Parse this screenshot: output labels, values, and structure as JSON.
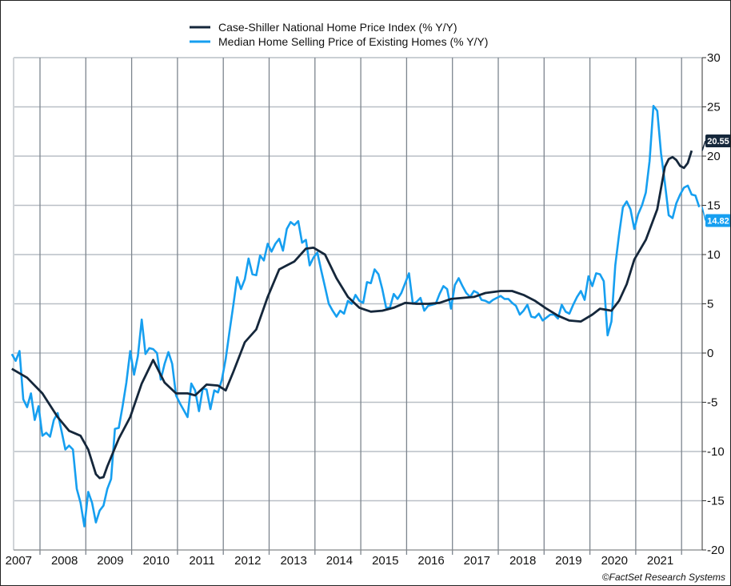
{
  "chart_data": {
    "type": "line",
    "title": "",
    "xlabel": "",
    "ylabel": "",
    "ylim": [
      -20,
      30
    ],
    "yticks": [
      30,
      25,
      20,
      15,
      10,
      5,
      0,
      -5,
      -10,
      -15,
      -20
    ],
    "xticks": [
      "2007",
      "2008",
      "2009",
      "2010",
      "2011",
      "2012",
      "2013",
      "2014",
      "2015",
      "2016",
      "2017",
      "2018",
      "2019",
      "2020",
      "2021"
    ],
    "grid": true,
    "legend_position": "top",
    "y_axis_side": "right",
    "series": [
      {
        "name": "Case-Shiller National Home Price Index (% Y/Y)",
        "color": "#15273b",
        "last_value_label": "20.55",
        "points": [
          [
            "2007-05",
            -1.6
          ],
          [
            "2007-09",
            -2.5
          ],
          [
            "2008-01",
            -4.1
          ],
          [
            "2008-05",
            -6.5
          ],
          [
            "2008-08",
            -7.9
          ],
          [
            "2008-11",
            -8.4
          ],
          [
            "2009-01",
            -9.8
          ],
          [
            "2009-03",
            -12.3
          ],
          [
            "2009-04",
            -12.7
          ],
          [
            "2009-05",
            -12.6
          ],
          [
            "2009-06",
            -11.5
          ],
          [
            "2009-09",
            -8.7
          ],
          [
            "2009-12",
            -6.5
          ],
          [
            "2010-03",
            -3.1
          ],
          [
            "2010-06",
            -0.7
          ],
          [
            "2010-09",
            -3.0
          ],
          [
            "2010-12",
            -4.1
          ],
          [
            "2011-03",
            -4.1
          ],
          [
            "2011-05",
            -4.3
          ],
          [
            "2011-08",
            -3.2
          ],
          [
            "2011-11",
            -3.3
          ],
          [
            "2012-01",
            -3.8
          ],
          [
            "2012-03",
            -1.9
          ],
          [
            "2012-06",
            1.1
          ],
          [
            "2012-09",
            2.4
          ],
          [
            "2012-12",
            5.7
          ],
          [
            "2013-03",
            8.5
          ],
          [
            "2013-05",
            8.9
          ],
          [
            "2013-07",
            9.3
          ],
          [
            "2013-10",
            10.6
          ],
          [
            "2013-12",
            10.7
          ],
          [
            "2014-03",
            10.0
          ],
          [
            "2014-06",
            7.6
          ],
          [
            "2014-09",
            5.7
          ],
          [
            "2014-12",
            4.6
          ],
          [
            "2015-03",
            4.2
          ],
          [
            "2015-06",
            4.3
          ],
          [
            "2015-09",
            4.6
          ],
          [
            "2015-12",
            5.1
          ],
          [
            "2016-03",
            5.0
          ],
          [
            "2016-06",
            5.0
          ],
          [
            "2016-09",
            5.1
          ],
          [
            "2016-12",
            5.5
          ],
          [
            "2017-06",
            5.7
          ],
          [
            "2017-09",
            6.1
          ],
          [
            "2018-01",
            6.3
          ],
          [
            "2018-04",
            6.3
          ],
          [
            "2018-07",
            5.9
          ],
          [
            "2018-10",
            5.3
          ],
          [
            "2019-01",
            4.5
          ],
          [
            "2019-04",
            3.8
          ],
          [
            "2019-07",
            3.3
          ],
          [
            "2019-10",
            3.2
          ],
          [
            "2020-01",
            3.9
          ],
          [
            "2020-03",
            4.5
          ],
          [
            "2020-06",
            4.3
          ],
          [
            "2020-08",
            5.3
          ],
          [
            "2020-10",
            7.0
          ],
          [
            "2020-12",
            9.5
          ],
          [
            "2021-03",
            11.5
          ],
          [
            "2021-06",
            14.6
          ],
          [
            "2021-08",
            18.9
          ],
          [
            "2021-09",
            19.7
          ],
          [
            "2021-10",
            19.9
          ],
          [
            "2021-11",
            19.6
          ],
          [
            "2021-12",
            19.0
          ],
          [
            "2022-01",
            18.8
          ],
          [
            "2022-02",
            19.3
          ],
          [
            "2022-03",
            20.55
          ]
        ]
      },
      {
        "name": "Median Home Selling Price of Existing Homes (% Y/Y)",
        "color": "#169ff0",
        "last_value_label": "14.82",
        "points": [
          [
            "2007-05",
            -0.1
          ],
          [
            "2007-06",
            -0.8
          ],
          [
            "2007-07",
            0.2
          ],
          [
            "2007-08",
            -4.7
          ],
          [
            "2007-09",
            -5.5
          ],
          [
            "2007-10",
            -4.1
          ],
          [
            "2007-11",
            -6.8
          ],
          [
            "2007-12",
            -5.4
          ],
          [
            "2008-01",
            -8.4
          ],
          [
            "2008-02",
            -8.1
          ],
          [
            "2008-03",
            -8.5
          ],
          [
            "2008-04",
            -6.8
          ],
          [
            "2008-05",
            -6.1
          ],
          [
            "2008-06",
            -7.9
          ],
          [
            "2008-07",
            -9.8
          ],
          [
            "2008-08",
            -9.4
          ],
          [
            "2008-09",
            -9.8
          ],
          [
            "2008-10",
            -13.8
          ],
          [
            "2008-11",
            -15.2
          ],
          [
            "2008-12",
            -17.6
          ],
          [
            "2009-01",
            -14.1
          ],
          [
            "2009-02",
            -15.2
          ],
          [
            "2009-03",
            -17.2
          ],
          [
            "2009-04",
            -16.0
          ],
          [
            "2009-05",
            -15.5
          ],
          [
            "2009-06",
            -13.8
          ],
          [
            "2009-07",
            -12.8
          ],
          [
            "2009-08",
            -7.7
          ],
          [
            "2009-09",
            -7.6
          ],
          [
            "2009-10",
            -5.4
          ],
          [
            "2009-11",
            -3.0
          ],
          [
            "2009-12",
            0.2
          ],
          [
            "2010-01",
            -2.2
          ],
          [
            "2010-02",
            -0.3
          ],
          [
            "2010-03",
            3.4
          ],
          [
            "2010-04",
            -0.1
          ],
          [
            "2010-05",
            0.5
          ],
          [
            "2010-06",
            0.4
          ],
          [
            "2010-07",
            0.0
          ],
          [
            "2010-08",
            -2.7
          ],
          [
            "2010-09",
            -1.1
          ],
          [
            "2010-10",
            0.1
          ],
          [
            "2010-11",
            -1.1
          ],
          [
            "2010-12",
            -4.3
          ],
          [
            "2011-01",
            -5.1
          ],
          [
            "2011-02",
            -5.8
          ],
          [
            "2011-03",
            -6.5
          ],
          [
            "2011-04",
            -3.1
          ],
          [
            "2011-05",
            -3.8
          ],
          [
            "2011-06",
            -5.9
          ],
          [
            "2011-07",
            -3.6
          ],
          [
            "2011-08",
            -3.7
          ],
          [
            "2011-09",
            -5.7
          ],
          [
            "2011-10",
            -3.8
          ],
          [
            "2011-11",
            -4.0
          ],
          [
            "2011-12",
            -2.7
          ],
          [
            "2012-01",
            -0.6
          ],
          [
            "2012-02",
            2.2
          ],
          [
            "2012-03",
            4.9
          ],
          [
            "2012-04",
            7.7
          ],
          [
            "2012-05",
            6.5
          ],
          [
            "2012-06",
            7.5
          ],
          [
            "2012-07",
            9.6
          ],
          [
            "2012-08",
            8.0
          ],
          [
            "2012-09",
            7.9
          ],
          [
            "2012-10",
            9.9
          ],
          [
            "2012-11",
            9.4
          ],
          [
            "2012-12",
            11.1
          ],
          [
            "2013-01",
            10.3
          ],
          [
            "2013-02",
            11.1
          ],
          [
            "2013-03",
            11.6
          ],
          [
            "2013-04",
            10.4
          ],
          [
            "2013-05",
            12.6
          ],
          [
            "2013-06",
            13.3
          ],
          [
            "2013-07",
            13.0
          ],
          [
            "2013-08",
            13.4
          ],
          [
            "2013-09",
            11.2
          ],
          [
            "2013-10",
            11.5
          ],
          [
            "2013-11",
            8.9
          ],
          [
            "2013-12",
            9.7
          ],
          [
            "2014-01",
            10.2
          ],
          [
            "2014-02",
            8.4
          ],
          [
            "2014-03",
            6.7
          ],
          [
            "2014-04",
            5.0
          ],
          [
            "2014-05",
            4.3
          ],
          [
            "2014-06",
            3.7
          ],
          [
            "2014-07",
            4.3
          ],
          [
            "2014-08",
            4.0
          ],
          [
            "2014-09",
            5.3
          ],
          [
            "2014-10",
            5.0
          ],
          [
            "2014-11",
            5.9
          ],
          [
            "2014-12",
            5.3
          ],
          [
            "2015-01",
            5.1
          ],
          [
            "2015-02",
            7.2
          ],
          [
            "2015-03",
            7.1
          ],
          [
            "2015-04",
            8.5
          ],
          [
            "2015-05",
            8.0
          ],
          [
            "2015-06",
            6.5
          ],
          [
            "2015-07",
            4.6
          ],
          [
            "2015-08",
            4.6
          ],
          [
            "2015-09",
            6.0
          ],
          [
            "2015-10",
            5.5
          ],
          [
            "2015-11",
            6.1
          ],
          [
            "2015-12",
            7.1
          ],
          [
            "2016-01",
            8.1
          ],
          [
            "2016-02",
            5.0
          ],
          [
            "2016-03",
            5.2
          ],
          [
            "2016-04",
            5.6
          ],
          [
            "2016-05",
            4.3
          ],
          [
            "2016-06",
            4.8
          ],
          [
            "2016-07",
            4.9
          ],
          [
            "2016-08",
            5.0
          ],
          [
            "2016-09",
            6.0
          ],
          [
            "2016-10",
            6.8
          ],
          [
            "2016-11",
            6.5
          ],
          [
            "2016-12",
            4.5
          ],
          [
            "2017-01",
            6.9
          ],
          [
            "2017-02",
            7.6
          ],
          [
            "2017-03",
            6.8
          ],
          [
            "2017-04",
            6.1
          ],
          [
            "2017-05",
            5.7
          ],
          [
            "2017-06",
            6.3
          ],
          [
            "2017-07",
            6.1
          ],
          [
            "2017-08",
            5.4
          ],
          [
            "2017-09",
            5.3
          ],
          [
            "2017-10",
            5.1
          ],
          [
            "2017-11",
            5.4
          ],
          [
            "2017-12",
            5.6
          ],
          [
            "2018-01",
            5.8
          ],
          [
            "2018-02",
            5.5
          ],
          [
            "2018-03",
            5.5
          ],
          [
            "2018-04",
            5.1
          ],
          [
            "2018-05",
            4.8
          ],
          [
            "2018-06",
            3.9
          ],
          [
            "2018-07",
            4.3
          ],
          [
            "2018-08",
            4.9
          ],
          [
            "2018-09",
            3.7
          ],
          [
            "2018-10",
            3.6
          ],
          [
            "2018-11",
            4.0
          ],
          [
            "2018-12",
            3.3
          ],
          [
            "2019-01",
            3.6
          ],
          [
            "2019-02",
            3.9
          ],
          [
            "2019-03",
            3.9
          ],
          [
            "2019-04",
            3.5
          ],
          [
            "2019-05",
            4.9
          ],
          [
            "2019-06",
            4.2
          ],
          [
            "2019-07",
            4.0
          ],
          [
            "2019-08",
            4.9
          ],
          [
            "2019-09",
            5.7
          ],
          [
            "2019-10",
            6.3
          ],
          [
            "2019-11",
            5.4
          ],
          [
            "2019-12",
            7.8
          ],
          [
            "2020-01",
            6.8
          ],
          [
            "2020-02",
            8.1
          ],
          [
            "2020-03",
            8.0
          ],
          [
            "2020-04",
            7.3
          ],
          [
            "2020-05",
            1.8
          ],
          [
            "2020-06",
            3.2
          ],
          [
            "2020-07",
            8.9
          ],
          [
            "2020-08",
            12.0
          ],
          [
            "2020-09",
            14.8
          ],
          [
            "2020-10",
            15.4
          ],
          [
            "2020-11",
            14.6
          ],
          [
            "2020-12",
            12.6
          ],
          [
            "2021-01",
            14.1
          ],
          [
            "2021-02",
            15.0
          ],
          [
            "2021-03",
            16.3
          ],
          [
            "2021-04",
            19.5
          ],
          [
            "2021-05",
            25.1
          ],
          [
            "2021-06",
            24.6
          ],
          [
            "2021-07",
            20.3
          ],
          [
            "2021-08",
            17.3
          ],
          [
            "2021-09",
            14.0
          ],
          [
            "2021-10",
            13.7
          ],
          [
            "2021-11",
            15.2
          ],
          [
            "2021-12",
            16.1
          ],
          [
            "2022-01",
            16.8
          ],
          [
            "2022-02",
            17.0
          ],
          [
            "2022-03",
            16.1
          ],
          [
            "2022-04",
            16.0
          ],
          [
            "2022-05",
            14.82
          ]
        ]
      }
    ],
    "annotations": [
      "©FactSet Research Systems"
    ]
  }
}
